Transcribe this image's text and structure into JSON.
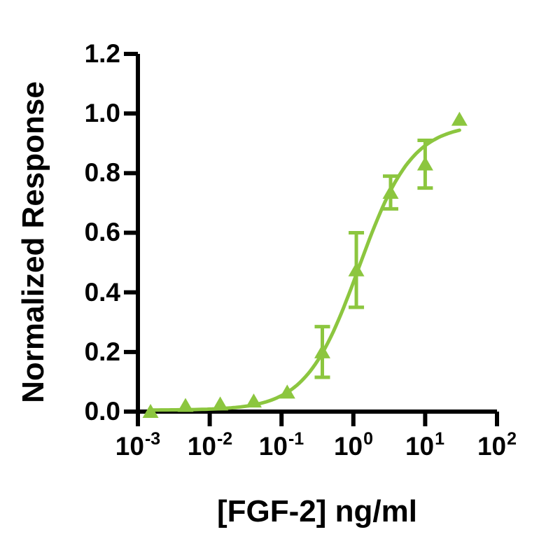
{
  "figure": {
    "background_color": "#ffffff",
    "axis_color": "#000000",
    "accent_color": "#8CC63F"
  },
  "chart_data": {
    "type": "scatter",
    "title": "",
    "xlabel": "[FGF-2] ng/ml",
    "ylabel": "Normalized Response",
    "x_scale": "log10",
    "xlim": [
      0.001,
      100
    ],
    "ylim": [
      0.0,
      1.2
    ],
    "grid": false,
    "legend": null,
    "marker": "triangle-up",
    "marker_color": "#8CC63F",
    "curve_color": "#8CC63F",
    "y_ticks": [
      {
        "label": "1.2",
        "value": 1.2
      },
      {
        "label": "1.0",
        "value": 1.0
      },
      {
        "label": "0.8",
        "value": 0.8
      },
      {
        "label": "0.6",
        "value": 0.6
      },
      {
        "label": "0.4",
        "value": 0.4
      },
      {
        "label": "0.2",
        "value": 0.2
      },
      {
        "label": "0.0",
        "value": 0.0
      }
    ],
    "x_ticks": [
      {
        "base": "10",
        "exp": "-3",
        "value": 0.001
      },
      {
        "base": "10",
        "exp": "-2",
        "value": 0.01
      },
      {
        "base": "10",
        "exp": "-1",
        "value": 0.1
      },
      {
        "base": "10",
        "exp": "0",
        "value": 1
      },
      {
        "base": "10",
        "exp": "1",
        "value": 10
      },
      {
        "base": "10",
        "exp": "2",
        "value": 100
      }
    ],
    "points": [
      {
        "x": 0.0015,
        "y": 0.0,
        "err": 0
      },
      {
        "x": 0.0046,
        "y": 0.02,
        "err": 0
      },
      {
        "x": 0.014,
        "y": 0.025,
        "err": 0
      },
      {
        "x": 0.041,
        "y": 0.035,
        "err": 0
      },
      {
        "x": 0.12,
        "y": 0.065,
        "err": 0
      },
      {
        "x": 0.37,
        "y": 0.2,
        "err": 0.085
      },
      {
        "x": 1.1,
        "y": 0.475,
        "err": 0.125
      },
      {
        "x": 3.3,
        "y": 0.735,
        "err": 0.055
      },
      {
        "x": 10,
        "y": 0.83,
        "err": 0.08
      },
      {
        "x": 30,
        "y": 0.98,
        "err": 0
      }
    ],
    "fit_curve": {
      "model": "4PL",
      "bottom": 0.005,
      "top": 0.965,
      "ec50": 1.2,
      "hill": 1.18,
      "x_range": [
        0.0015,
        30
      ]
    }
  }
}
